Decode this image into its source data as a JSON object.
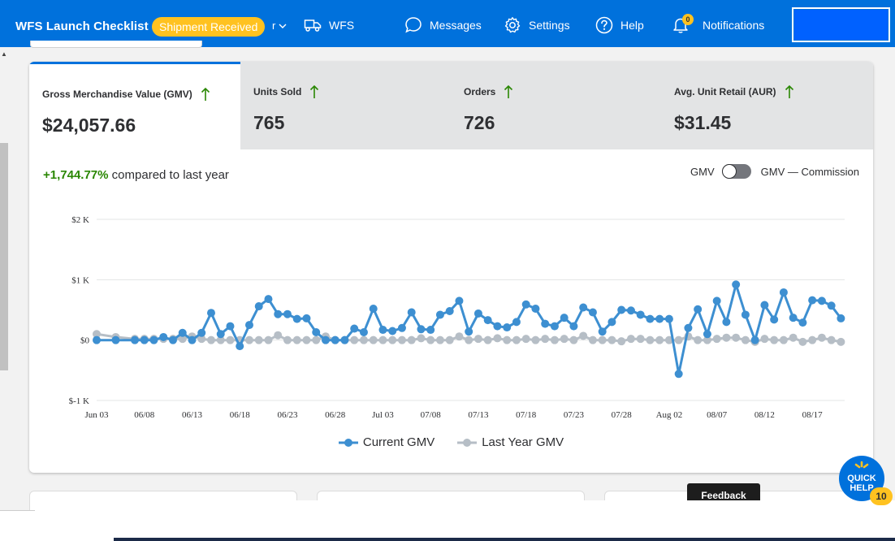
{
  "header": {
    "brand": "WFS Launch Checklist",
    "badge": "Shipment Received",
    "trail": "r",
    "nav": [
      {
        "label": "WFS",
        "icon": "truck-icon"
      },
      {
        "label": "Messages",
        "icon": "chat-icon"
      },
      {
        "label": "Settings",
        "icon": "gear-icon"
      },
      {
        "label": "Help",
        "icon": "help-icon"
      },
      {
        "label": "Notifications",
        "icon": "bell-icon",
        "count": "0"
      }
    ],
    "colors": {
      "bar": "#0071dc",
      "badge": "#ffc220"
    }
  },
  "metrics": [
    {
      "label": "Gross Merchandise Value (GMV)",
      "value": "$24,057.66",
      "trend": "up",
      "active": true
    },
    {
      "label": "Units Sold",
      "value": "765",
      "trend": "up",
      "active": false
    },
    {
      "label": "Orders",
      "value": "726",
      "trend": "up",
      "active": false
    },
    {
      "label": "Avg. Unit Retail (AUR)",
      "value": "$31.45",
      "trend": "up",
      "active": false
    }
  ],
  "comparison": {
    "percent": "+1,744.77%",
    "text": "compared to last year"
  },
  "toggle": {
    "left_label": "GMV",
    "right_label": "GMV — Commission",
    "state": "off"
  },
  "chart_data": {
    "type": "line",
    "x_ticks": [
      "Jun 03",
      "06/08",
      "06/13",
      "06/18",
      "06/23",
      "06/28",
      "Jul 03",
      "07/08",
      "07/13",
      "07/18",
      "07/23",
      "07/28",
      "Aug 02",
      "08/07",
      "08/12",
      "08/17"
    ],
    "y_ticks": [
      "$-1 K",
      "$0",
      "$1 K",
      "$2 K"
    ],
    "ylim": [
      -1000,
      2000
    ],
    "grid": true,
    "legend_position": "bottom",
    "series": [
      {
        "name": "Current GMV",
        "color": "#3d8fd1",
        "points": [
          [
            0,
            0
          ],
          [
            2,
            0
          ],
          [
            4,
            0
          ],
          [
            5,
            0
          ],
          [
            6,
            0
          ],
          [
            7,
            50
          ],
          [
            8,
            0
          ],
          [
            9,
            120
          ],
          [
            10,
            0
          ],
          [
            11,
            120
          ],
          [
            12,
            450
          ],
          [
            13,
            100
          ],
          [
            14,
            230
          ],
          [
            15,
            -100
          ],
          [
            16,
            250
          ],
          [
            17,
            560
          ],
          [
            18,
            680
          ],
          [
            19,
            430
          ],
          [
            20,
            430
          ],
          [
            21,
            350
          ],
          [
            22,
            360
          ],
          [
            23,
            130
          ],
          [
            24,
            0
          ],
          [
            25,
            0
          ],
          [
            26,
            0
          ],
          [
            27,
            190
          ],
          [
            28,
            130
          ],
          [
            29,
            520
          ],
          [
            30,
            170
          ],
          [
            31,
            150
          ],
          [
            32,
            200
          ],
          [
            33,
            460
          ],
          [
            34,
            180
          ],
          [
            35,
            170
          ],
          [
            36,
            420
          ],
          [
            37,
            480
          ],
          [
            38,
            650
          ],
          [
            39,
            140
          ],
          [
            40,
            440
          ],
          [
            41,
            330
          ],
          [
            42,
            230
          ],
          [
            43,
            210
          ],
          [
            44,
            300
          ],
          [
            45,
            590
          ],
          [
            46,
            520
          ],
          [
            47,
            270
          ],
          [
            48,
            230
          ],
          [
            49,
            370
          ],
          [
            50,
            230
          ],
          [
            51,
            540
          ],
          [
            52,
            460
          ],
          [
            53,
            140
          ],
          [
            54,
            300
          ],
          [
            55,
            500
          ],
          [
            56,
            490
          ],
          [
            57,
            420
          ],
          [
            58,
            350
          ],
          [
            59,
            350
          ],
          [
            60,
            350
          ],
          [
            61,
            -560
          ],
          [
            62,
            200
          ],
          [
            63,
            510
          ],
          [
            64,
            100
          ],
          [
            65,
            650
          ],
          [
            66,
            300
          ],
          [
            67,
            920
          ],
          [
            68,
            420
          ],
          [
            69,
            0
          ],
          [
            70,
            580
          ],
          [
            71,
            340
          ],
          [
            72,
            790
          ],
          [
            73,
            370
          ],
          [
            74,
            290
          ],
          [
            75,
            660
          ],
          [
            76,
            650
          ],
          [
            77,
            570
          ],
          [
            78,
            360
          ]
        ]
      },
      {
        "name": "Last Year GMV",
        "color": "#b6bec6",
        "points": [
          [
            0,
            100
          ],
          [
            2,
            50
          ],
          [
            4,
            20
          ],
          [
            5,
            20
          ],
          [
            6,
            20
          ],
          [
            7,
            20
          ],
          [
            8,
            20
          ],
          [
            9,
            20
          ],
          [
            10,
            60
          ],
          [
            11,
            20
          ],
          [
            12,
            0
          ],
          [
            13,
            0
          ],
          [
            14,
            0
          ],
          [
            15,
            0
          ],
          [
            16,
            0
          ],
          [
            17,
            0
          ],
          [
            18,
            0
          ],
          [
            19,
            80
          ],
          [
            20,
            0
          ],
          [
            21,
            0
          ],
          [
            22,
            0
          ],
          [
            23,
            0
          ],
          [
            24,
            60
          ],
          [
            25,
            0
          ],
          [
            26,
            0
          ],
          [
            27,
            0
          ],
          [
            28,
            0
          ],
          [
            29,
            0
          ],
          [
            30,
            0
          ],
          [
            31,
            0
          ],
          [
            32,
            0
          ],
          [
            33,
            0
          ],
          [
            34,
            30
          ],
          [
            35,
            0
          ],
          [
            36,
            0
          ],
          [
            37,
            0
          ],
          [
            38,
            60
          ],
          [
            39,
            0
          ],
          [
            40,
            20
          ],
          [
            41,
            0
          ],
          [
            42,
            30
          ],
          [
            43,
            0
          ],
          [
            44,
            0
          ],
          [
            45,
            20
          ],
          [
            46,
            0
          ],
          [
            47,
            20
          ],
          [
            48,
            0
          ],
          [
            49,
            20
          ],
          [
            50,
            0
          ],
          [
            51,
            70
          ],
          [
            52,
            0
          ],
          [
            53,
            0
          ],
          [
            54,
            0
          ],
          [
            55,
            -20
          ],
          [
            56,
            20
          ],
          [
            57,
            20
          ],
          [
            58,
            0
          ],
          [
            59,
            0
          ],
          [
            60,
            0
          ],
          [
            61,
            0
          ],
          [
            62,
            60
          ],
          [
            63,
            0
          ],
          [
            64,
            0
          ],
          [
            65,
            20
          ],
          [
            66,
            40
          ],
          [
            67,
            40
          ],
          [
            68,
            0
          ],
          [
            69,
            -30
          ],
          [
            70,
            20
          ],
          [
            71,
            0
          ],
          [
            72,
            0
          ],
          [
            73,
            40
          ],
          [
            74,
            -30
          ],
          [
            75,
            0
          ],
          [
            76,
            40
          ],
          [
            77,
            0
          ],
          [
            78,
            -30
          ]
        ]
      }
    ]
  },
  "overlays": {
    "feedback": "Feedback",
    "quick_help_line1": "QUICK",
    "quick_help_line2": "HELP",
    "quick_help_count": "10"
  }
}
